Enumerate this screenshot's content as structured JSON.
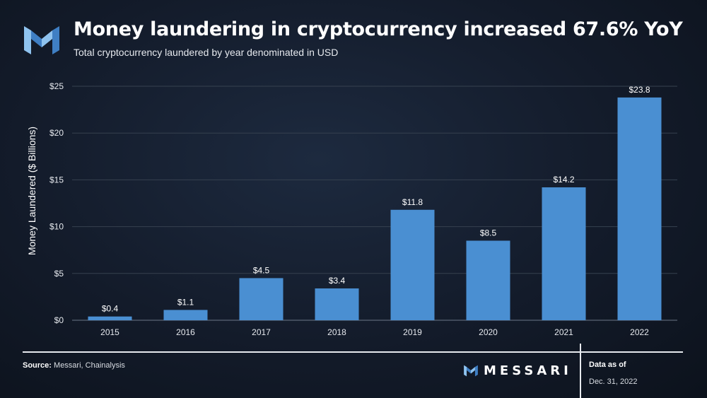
{
  "header": {
    "title": "Money laundering in cryptocurrency increased 67.6% YoY",
    "subtitle": "Total cryptocurrency laundered by year denominated in USD"
  },
  "chart_data": {
    "type": "bar",
    "categories": [
      "2015",
      "2016",
      "2017",
      "2018",
      "2019",
      "2020",
      "2021",
      "2022"
    ],
    "values": [
      0.4,
      1.1,
      4.5,
      3.4,
      11.8,
      8.5,
      14.2,
      23.8
    ],
    "data_labels": [
      "$0.4",
      "$1.1",
      "$4.5",
      "$3.4",
      "$11.8",
      "$8.5",
      "$14.2",
      "$23.8"
    ],
    "title": "Money laundering in cryptocurrency increased 67.6% YoY",
    "subtitle": "Total cryptocurrency laundered by year denominated in USD",
    "xlabel": "",
    "ylabel": "Money Laundered ($ Billions)",
    "ylim": [
      0,
      25
    ],
    "yticks": [
      0,
      5,
      10,
      15,
      20,
      25
    ],
    "ytick_labels": [
      "$0",
      "$5",
      "$10",
      "$15",
      "$20",
      "$25"
    ],
    "grid": true,
    "legend": "none",
    "bar_color": "#4a8fd2"
  },
  "footer": {
    "source_label": "Source:",
    "source_text": " Messari, Chainalysis",
    "brand": "MESSARI",
    "asof_label": "Data as of",
    "asof_date": "Dec. 31, 2022"
  },
  "colors": {
    "background": "#131b2a",
    "bar": "#4a8fd2",
    "grid": "#3b4658",
    "logo_light": "#8fc3ef",
    "logo_dark": "#3f7fc4"
  }
}
